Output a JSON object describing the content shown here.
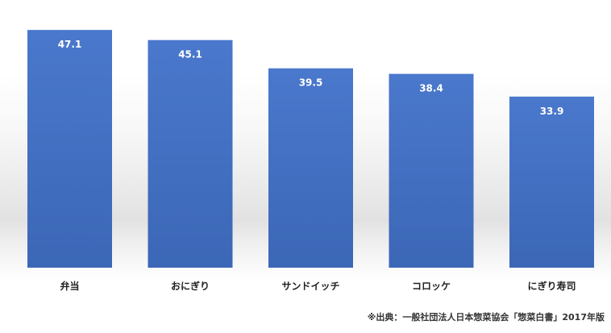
{
  "chart_data": {
    "type": "bar",
    "categories": [
      "弁当",
      "おにぎり",
      "サンドイッチ",
      "コロッケ",
      "にぎり寿司"
    ],
    "values": [
      47.1,
      45.1,
      39.5,
      38.4,
      33.9
    ],
    "data_labels": [
      "47.1",
      "45.1",
      "39.5",
      "38.4",
      "33.9"
    ],
    "title": "",
    "xlabel": "",
    "ylabel": "",
    "ylim": [
      0,
      50
    ],
    "grid": false,
    "legend": "none",
    "bar_color": "#4472c4"
  },
  "source": "※出典：一般社団法人日本惣菜協会「惣菜白書」2017年版"
}
